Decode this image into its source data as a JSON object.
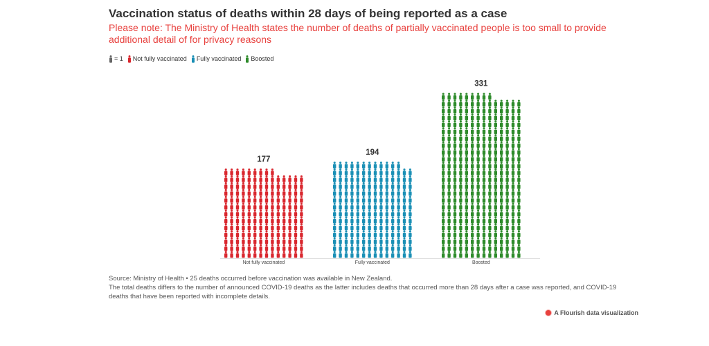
{
  "title": "Vaccination status of deaths within 28 days of being reported as a case",
  "subtitle": "Please note: The Ministry of Health states the number of deaths of partially vaccinated people is too small to provide additional detail of for privacy reasons",
  "legend": {
    "unit_label": "= 1",
    "items": [
      {
        "label": "Not fully vaccinated",
        "color": "#d9272e"
      },
      {
        "label": "Fully vaccinated",
        "color": "#1a8fb5"
      },
      {
        "label": "Boosted",
        "color": "#2e8b2b"
      }
    ]
  },
  "chart_data": {
    "type": "bar",
    "unit": "person icon = 1 death",
    "categories": [
      "Not fully vaccinated",
      "Fully vaccinated",
      "Boosted"
    ],
    "values": [
      177,
      194,
      331
    ],
    "colors": [
      "#d9272e",
      "#1a8fb5",
      "#2e8b2b"
    ]
  },
  "footer": {
    "line1": "Source: Ministry of Health • 25 deaths occurred before vaccination was available in New Zealand.",
    "line2": "The total deaths differs to the number of announced COVID-19 deaths as the latter includes deaths that occurred more than 28 days after a case was reported, and COVID-19 deaths that have been reported with incomplete details."
  },
  "brand": "A Flourish data visualization"
}
